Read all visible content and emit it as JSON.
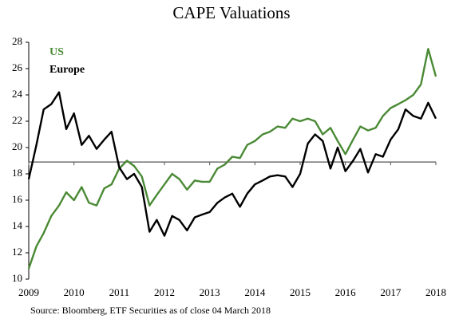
{
  "chart_data": {
    "type": "line",
    "title": "CAPE Valuations",
    "source": "Source: Bloomberg, ETF Securities as of close 04 March 2018",
    "x": [
      2009,
      2009.17,
      2009.33,
      2009.5,
      2009.67,
      2009.83,
      2010,
      2010.17,
      2010.33,
      2010.5,
      2010.67,
      2010.83,
      2011,
      2011.17,
      2011.33,
      2011.5,
      2011.67,
      2011.83,
      2012,
      2012.17,
      2012.33,
      2012.5,
      2012.67,
      2012.83,
      2013,
      2013.17,
      2013.33,
      2013.5,
      2013.67,
      2013.83,
      2014,
      2014.17,
      2014.33,
      2014.5,
      2014.67,
      2014.83,
      2015,
      2015.17,
      2015.33,
      2015.5,
      2015.67,
      2015.83,
      2016,
      2016.17,
      2016.33,
      2016.5,
      2016.67,
      2016.83,
      2017,
      2017.17,
      2017.33,
      2017.5,
      2017.67,
      2017.83,
      2018
    ],
    "series": [
      {
        "name": "US",
        "color": "#4a8a35",
        "values": [
          10.8,
          12.5,
          13.5,
          14.8,
          15.6,
          16.6,
          16.0,
          17.0,
          15.8,
          15.6,
          16.9,
          17.2,
          18.4,
          19.0,
          18.6,
          17.8,
          15.6,
          16.4,
          17.2,
          18.0,
          17.6,
          16.8,
          17.5,
          17.4,
          17.4,
          18.4,
          18.7,
          19.3,
          19.2,
          20.2,
          20.5,
          21.0,
          21.2,
          21.6,
          21.5,
          22.2,
          22.0,
          22.2,
          22.0,
          21.0,
          21.5,
          20.5,
          19.5,
          20.6,
          21.6,
          21.3,
          21.5,
          22.4,
          23.0,
          23.3,
          23.6,
          24.0,
          24.8,
          27.5,
          25.4
        ]
      },
      {
        "name": "Europe",
        "color": "#000000",
        "values": [
          17.6,
          20.2,
          22.9,
          23.3,
          24.2,
          21.4,
          22.6,
          20.2,
          20.9,
          19.9,
          20.6,
          21.2,
          18.5,
          17.6,
          18.0,
          17.0,
          13.6,
          14.5,
          13.3,
          14.8,
          14.5,
          13.7,
          14.7,
          14.9,
          15.1,
          15.8,
          16.2,
          16.5,
          15.5,
          16.5,
          17.2,
          17.5,
          17.8,
          17.9,
          17.8,
          17.0,
          18.0,
          20.3,
          21.0,
          20.5,
          18.4,
          20.0,
          18.2,
          19.0,
          19.9,
          18.1,
          19.5,
          19.3,
          20.6,
          21.4,
          22.9,
          22.4,
          22.2,
          23.4,
          22.2
        ]
      }
    ],
    "reference_line": 18.9,
    "xlim": [
      2009,
      2018
    ],
    "xticks": [
      2009,
      2010,
      2011,
      2012,
      2013,
      2014,
      2015,
      2016,
      2017,
      2018
    ],
    "ylim": [
      10,
      28
    ],
    "yticks": [
      10,
      12,
      14,
      16,
      18,
      20,
      22,
      24,
      26,
      28
    ]
  }
}
